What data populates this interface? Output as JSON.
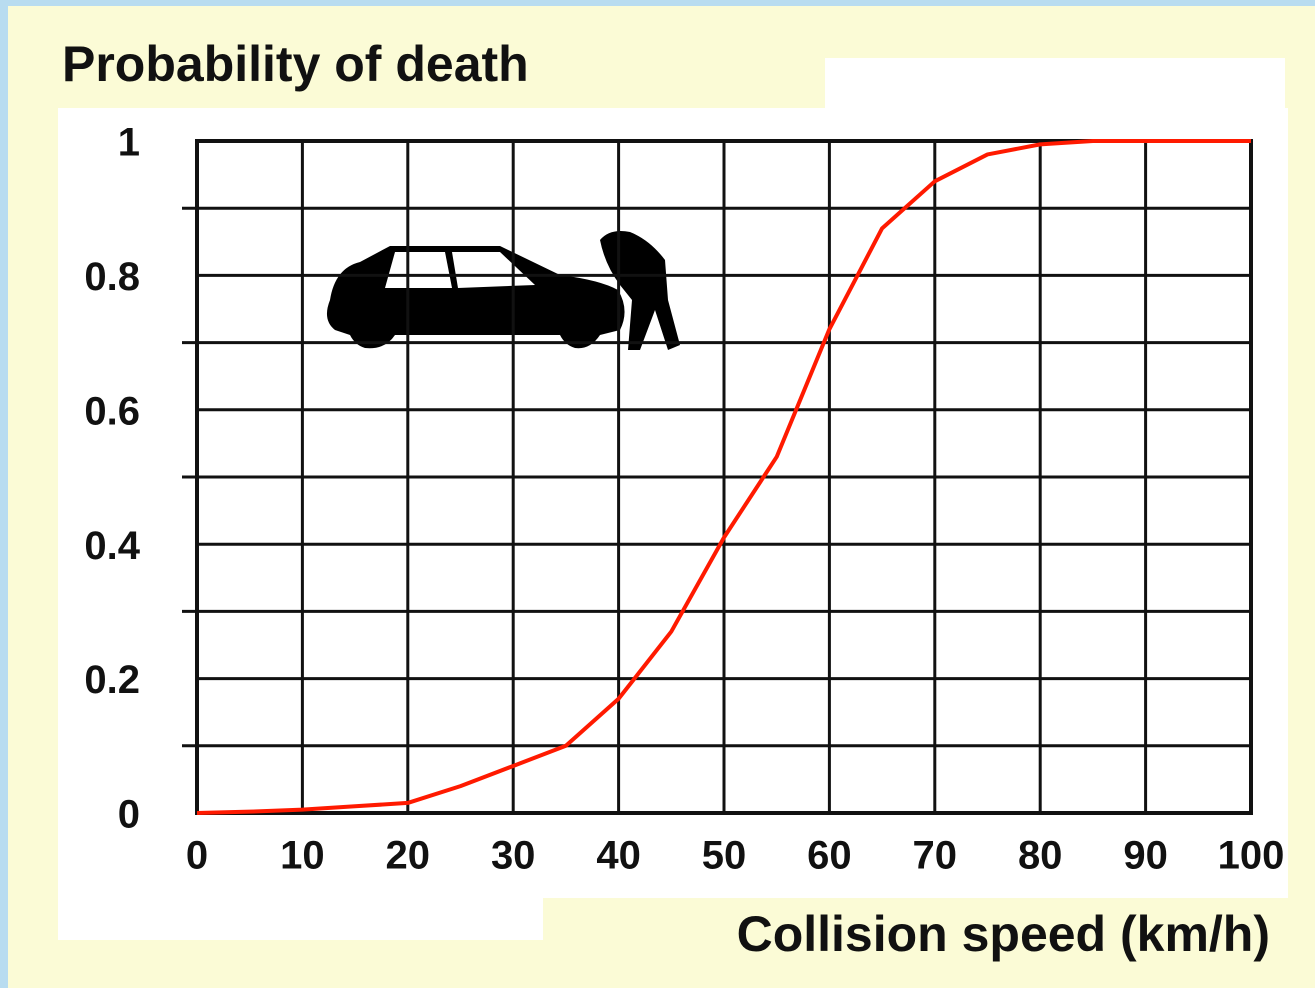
{
  "chart_data": {
    "type": "line",
    "title": "Probability of death",
    "x_label": "Collision speed (km/h)",
    "x": [
      0,
      5,
      10,
      15,
      20,
      25,
      30,
      35,
      40,
      45,
      50,
      55,
      60,
      65,
      70,
      75,
      80,
      85,
      90,
      95,
      100
    ],
    "values": [
      0,
      0.002,
      0.005,
      0.01,
      0.015,
      0.04,
      0.07,
      0.1,
      0.17,
      0.27,
      0.41,
      0.53,
      0.72,
      0.87,
      0.94,
      0.98,
      0.995,
      1,
      1,
      1,
      1
    ],
    "color": "#ff1a00",
    "xlim": [
      0,
      100
    ],
    "xticks": [
      0,
      10,
      20,
      30,
      40,
      50,
      60,
      70,
      80,
      90,
      100
    ],
    "ylim": [
      0,
      1
    ],
    "yticks": [
      0,
      0.2,
      0.4,
      0.6,
      0.8,
      1
    ],
    "minor_yticks": [
      0.1,
      0.3,
      0.5,
      0.7,
      0.9
    ],
    "grid": true
  }
}
